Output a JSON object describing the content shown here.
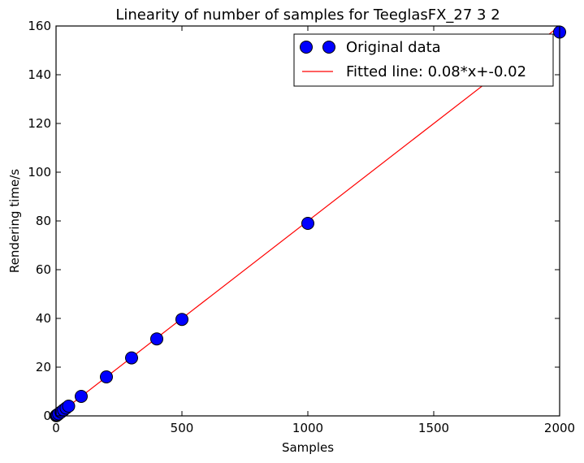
{
  "chart_data": {
    "type": "scatter",
    "title": "Linearity of number of samples for TeeglasFX_27 3 2",
    "xlabel": "Samples",
    "ylabel": "Rendering time/s",
    "xlim": [
      0,
      2000
    ],
    "ylim": [
      0,
      160
    ],
    "xticks": [
      0,
      500,
      1000,
      1500,
      2000
    ],
    "yticks": [
      0,
      20,
      40,
      60,
      80,
      100,
      120,
      140,
      160
    ],
    "xtick_labels": [
      "0",
      "500",
      "1000",
      "1500",
      "2000"
    ],
    "ytick_labels": [
      "0",
      "20",
      "40",
      "60",
      "80",
      "100",
      "120",
      "140",
      "160"
    ],
    "grid": false,
    "legend_position": "top-right",
    "series": [
      {
        "name": "Original data",
        "kind": "markers",
        "color": "#0000ff",
        "x": [
          1,
          2,
          5,
          10,
          20,
          30,
          40,
          50,
          100,
          200,
          300,
          400,
          500,
          1000,
          2000
        ],
        "y": [
          0.1,
          0.2,
          0.4,
          0.8,
          1.6,
          2.4,
          3.2,
          4.0,
          8.0,
          16.0,
          23.8,
          31.6,
          39.6,
          79.0,
          157.5
        ]
      },
      {
        "name": "Fitted line: 0.08*x+-0.02",
        "kind": "line",
        "color": "#ff0000",
        "slope": 0.08,
        "intercept": -0.02
      }
    ]
  }
}
